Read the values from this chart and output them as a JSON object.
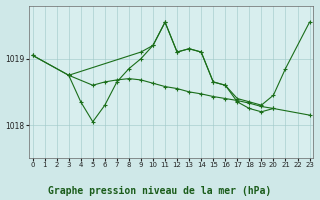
{
  "background_color": "#cfe8e8",
  "plot_bg_color": "#d8eeee",
  "line_color": "#1a6e1a",
  "marker_color": "#1a6e1a",
  "title": "Graphe pression niveau de la mer (hPa)",
  "ylim": [
    1017.5,
    1019.8
  ],
  "xlim": [
    -0.3,
    23.3
  ],
  "yticks": [
    1018,
    1019
  ],
  "xticks": [
    0,
    1,
    2,
    3,
    4,
    5,
    6,
    7,
    8,
    9,
    10,
    11,
    12,
    13,
    14,
    15,
    16,
    17,
    18,
    19,
    20,
    21,
    22,
    23
  ],
  "line1_x": [
    0,
    3,
    9,
    10,
    11,
    12,
    13,
    14,
    15,
    16,
    17,
    18,
    19,
    20,
    21,
    23
  ],
  "line1_y": [
    1019.05,
    1018.75,
    1019.1,
    1019.2,
    1019.55,
    1019.1,
    1019.15,
    1019.1,
    1018.65,
    1018.6,
    1018.4,
    1018.35,
    1018.3,
    1018.45,
    1018.85,
    1019.55
  ],
  "line2_x": [
    0,
    3,
    5,
    6,
    7,
    8,
    9,
    10,
    11,
    12,
    13,
    14,
    15,
    16,
    17,
    18,
    19,
    20,
    23
  ],
  "line2_y": [
    1019.05,
    1018.75,
    1018.6,
    1018.65,
    1018.68,
    1018.7,
    1018.68,
    1018.63,
    1018.58,
    1018.55,
    1018.5,
    1018.47,
    1018.43,
    1018.4,
    1018.37,
    1018.33,
    1018.28,
    1018.25,
    1018.15
  ],
  "line3_x": [
    3,
    4,
    5,
    6,
    7,
    8,
    9,
    10,
    11,
    12,
    13,
    14,
    15,
    16,
    17,
    18,
    19,
    20
  ],
  "line3_y": [
    1018.75,
    1018.35,
    1018.05,
    1018.3,
    1018.65,
    1018.85,
    1019.0,
    1019.2,
    1019.55,
    1019.1,
    1019.15,
    1019.1,
    1018.65,
    1018.6,
    1018.35,
    1018.25,
    1018.2,
    1018.25
  ],
  "title_fontsize": 7.0,
  "tick_fontsize": 5.0,
  "figsize": [
    3.2,
    2.0
  ],
  "dpi": 100
}
